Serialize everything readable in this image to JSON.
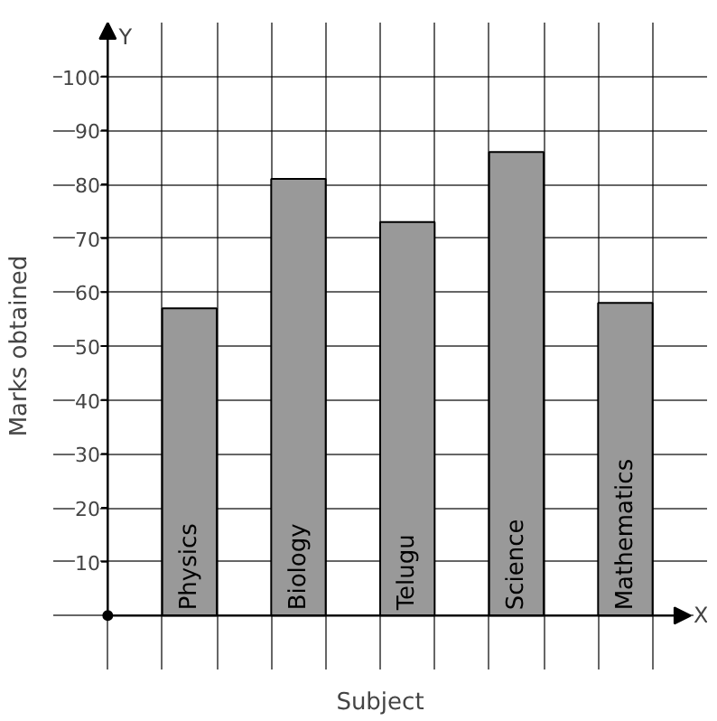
{
  "chart_data": {
    "type": "bar",
    "xlabel": "Subject",
    "ylabel": "Marks obtained",
    "categories": [
      "Physics",
      "Biology",
      "Telugu",
      "Science",
      "Mathematics"
    ],
    "values": [
      57,
      81,
      73,
      86,
      58
    ],
    "color": "#999999",
    "ylim": [
      -10,
      110
    ],
    "yticks": [
      10,
      20,
      30,
      40,
      50,
      60,
      70,
      80,
      90,
      100
    ],
    "grid": true,
    "annotations": [
      "X",
      "Y"
    ]
  }
}
